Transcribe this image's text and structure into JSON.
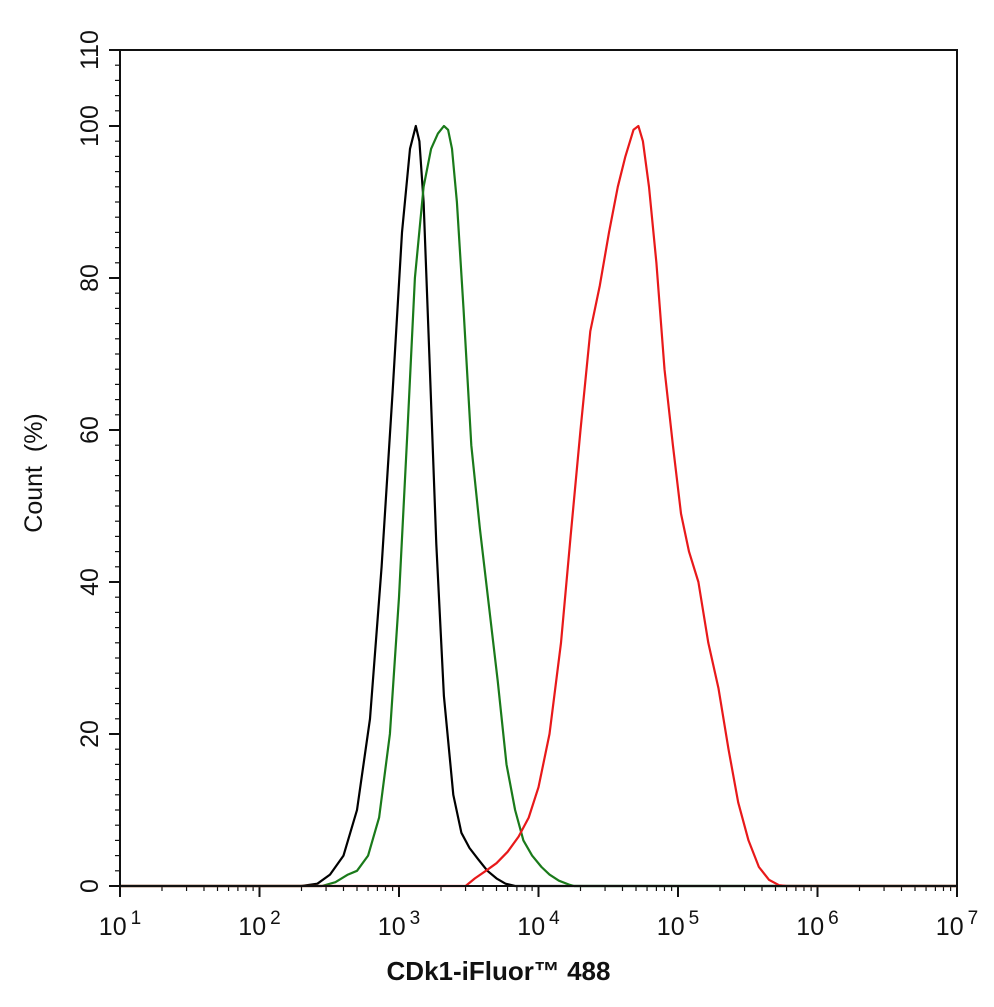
{
  "chart_data": {
    "type": "line",
    "title": "",
    "xlabel": "CDk1-iFluor™ 488",
    "ylabel": "Count  (%)",
    "xscale": "log",
    "xlim": [
      10,
      10000000
    ],
    "ylim": [
      0,
      110
    ],
    "x_ticks": [
      {
        "value": 10,
        "base": "10",
        "exp": "1"
      },
      {
        "value": 100,
        "base": "10",
        "exp": "2"
      },
      {
        "value": 1000,
        "base": "10",
        "exp": "3"
      },
      {
        "value": 10000,
        "base": "10",
        "exp": "4"
      },
      {
        "value": 100000,
        "base": "10",
        "exp": "5"
      },
      {
        "value": 1000000,
        "base": "10",
        "exp": "6"
      },
      {
        "value": 10000000,
        "base": "10",
        "exp": "7"
      }
    ],
    "y_ticks": [
      {
        "value": 0,
        "label": "0"
      },
      {
        "value": 20,
        "label": "20"
      },
      {
        "value": 40,
        "label": "40"
      },
      {
        "value": 60,
        "label": "60"
      },
      {
        "value": 80,
        "label": "80"
      },
      {
        "value": 100,
        "label": "100"
      },
      {
        "value": 110,
        "label": "110"
      }
    ],
    "grid": false,
    "legend": "none",
    "series": [
      {
        "color": "#000000",
        "x": [
          10,
          200,
          260,
          320,
          400,
          500,
          620,
          750,
          900,
          1050,
          1200,
          1320,
          1400,
          1500,
          1650,
          1850,
          2100,
          2450,
          2800,
          3200,
          3700,
          4300,
          5000,
          5800,
          6800,
          7500,
          10000000
        ],
        "y": [
          0,
          0,
          0.3,
          1.5,
          4,
          10,
          22,
          42,
          65,
          86,
          97,
          100,
          98,
          90,
          70,
          45,
          25,
          12,
          7,
          5,
          3.5,
          2,
          1,
          0.3,
          0,
          0,
          0
        ]
      },
      {
        "color": "#1a7a1a",
        "x": [
          10,
          280,
          350,
          430,
          500,
          600,
          720,
          860,
          1000,
          1150,
          1300,
          1500,
          1700,
          1900,
          2100,
          2250,
          2400,
          2600,
          2900,
          3300,
          3800,
          4400,
          5100,
          5900,
          6800,
          7800,
          9000,
          10500,
          12000,
          14000,
          16500,
          18000,
          10000000
        ],
        "y": [
          0,
          0,
          0.5,
          1.5,
          2,
          4,
          9,
          20,
          38,
          60,
          80,
          92,
          97,
          99,
          100,
          99.5,
          97,
          90,
          76,
          58,
          47,
          37,
          27,
          16,
          10,
          6,
          4,
          2.5,
          1.5,
          0.7,
          0.2,
          0,
          0
        ]
      },
      {
        "color": "#e8191a",
        "x": [
          10,
          3000,
          3500,
          4200,
          5000,
          6000,
          7200,
          8500,
          10000,
          12000,
          14500,
          17000,
          20000,
          23500,
          27500,
          32000,
          37000,
          42000,
          48000,
          52000,
          56000,
          62000,
          70000,
          80000,
          92000,
          105000,
          120000,
          140000,
          165000,
          195000,
          230000,
          270000,
          320000,
          380000,
          450000,
          530000,
          600000,
          10000000
        ],
        "y": [
          0,
          0,
          1,
          2,
          3,
          4.5,
          6.5,
          9,
          13,
          20,
          32,
          46,
          60,
          73,
          79,
          86,
          92,
          96,
          99.5,
          100,
          98,
          92,
          82,
          68,
          58,
          49,
          44,
          40,
          32,
          26,
          18,
          11,
          6,
          2.5,
          0.8,
          0.1,
          0,
          0
        ]
      }
    ]
  }
}
